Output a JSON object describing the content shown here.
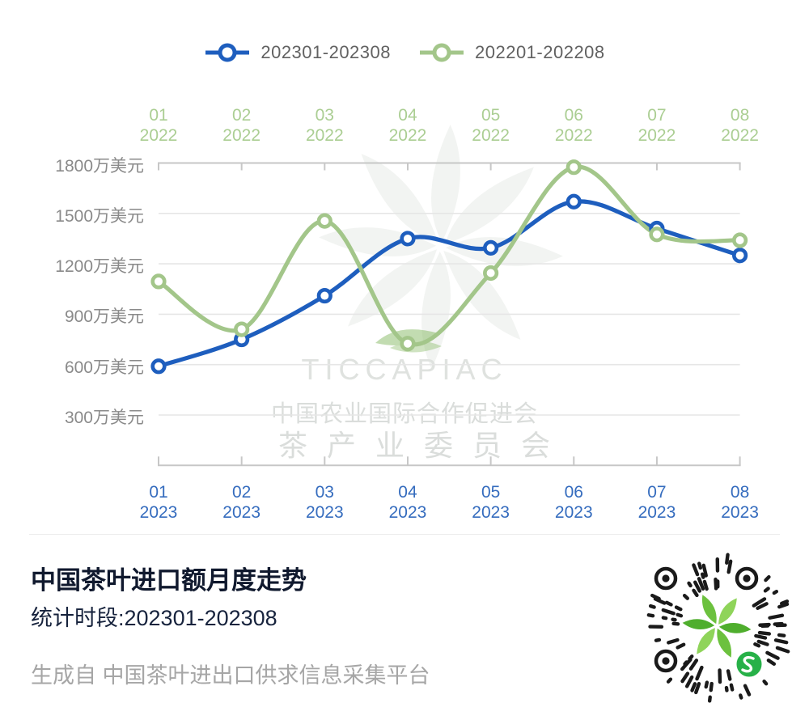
{
  "legend": {
    "items": [
      {
        "label": "202301-202308",
        "color": "#1e5ebe"
      },
      {
        "label": "202201-202208",
        "color": "#a3c68a"
      }
    ]
  },
  "chart_data": {
    "type": "line",
    "categories": [
      "01",
      "02",
      "03",
      "04",
      "05",
      "06",
      "07",
      "08"
    ],
    "series": [
      {
        "name": "202301-202308",
        "year": "2023",
        "color": "#1e5ebe",
        "values": [
          590,
          750,
          1010,
          1350,
          1295,
          1570,
          1410,
          1250
        ]
      },
      {
        "name": "202201-202208",
        "year": "2022",
        "color": "#a3c68a",
        "values": [
          1095,
          810,
          1455,
          725,
          1145,
          1775,
          1375,
          1340
        ]
      }
    ],
    "y_axis": {
      "unit": "万美元",
      "tick_values": [
        1800,
        1500,
        1200,
        900,
        600,
        300
      ],
      "min": 0,
      "max": 1800,
      "label_color": "#8a8a8a"
    },
    "top_axis": {
      "year": "2022",
      "label_color": "#abce93"
    },
    "bottom_axis": {
      "year": "2023",
      "label_color": "#356cbe"
    },
    "grid": true,
    "legend_position": "top",
    "axis_line_color": "#c7c7c7",
    "grid_color": "#e6e6e6"
  },
  "watermark": {
    "logo": "tea-leaves-pinwheel",
    "line1": "TICCAPIAC",
    "line2": "中国农业国际合作促进会",
    "line3": "茶产业委员会"
  },
  "caption": {
    "title": "中国茶叶进口额月度走势",
    "subtitle": "统计时段:202301-202308",
    "source": "生成自 中国茶叶进出口供求信息采集平台"
  },
  "qr_code": {
    "style": "wechat-mini-program-circular",
    "center_logo": "tea-leaves",
    "badge": "wechat-s-badge",
    "dot_color": "#1a1a1a",
    "badge_color": "#27b148"
  }
}
